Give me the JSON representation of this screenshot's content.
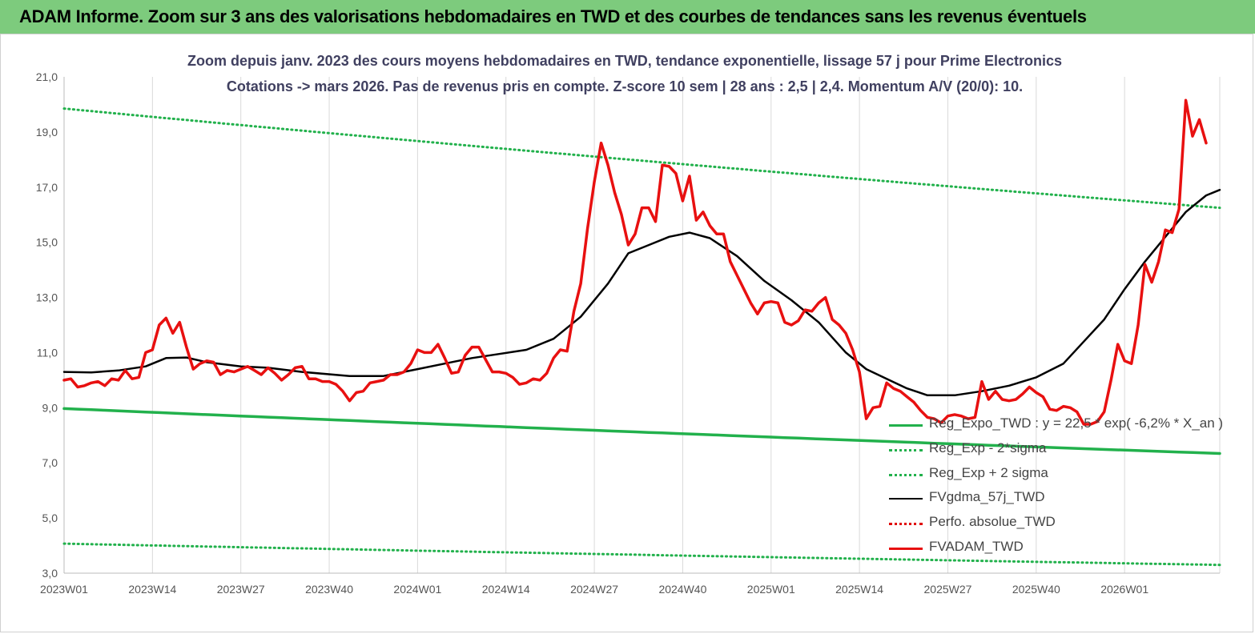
{
  "banner": {
    "title": "ADAM Informe. Zoom sur 3 ans des valorisations hebdomadaires en TWD et des courbes de tendances sans les revenus éventuels"
  },
  "colors": {
    "banner_bg": "#7dcb7d",
    "reg_expo": "#22b14c",
    "sigma": "#22b14c",
    "ma": "#000000",
    "perfo": "#e00000",
    "price": "#e81010",
    "grid": "#d9d9d9"
  },
  "chart_data": {
    "type": "line",
    "title": "Zoom depuis janv. 2023 des cours moyens hebdomadaires en TWD, tendance exponentielle, lissage 57 j pour Prime Electronics",
    "subtitle": "Cotations -> mars 2026. Pas de revenus pris en compte. Z-score 10 sem | 28 ans : 2,5 | 2,4. Momentum A/V (20/0): 10.",
    "xlabel": "",
    "ylabel": "",
    "ylim": [
      3,
      21
    ],
    "yticks": [
      "3,0",
      "5,0",
      "7,0",
      "9,0",
      "11,0",
      "13,0",
      "15,0",
      "17,0",
      "19,0",
      "21,0"
    ],
    "xticks": [
      "2023W01",
      "2023W14",
      "2023W27",
      "2023W40",
      "2024W01",
      "2024W14",
      "2024W27",
      "2024W40",
      "2025W01",
      "2025W14",
      "2025W27",
      "2025W40",
      "2026W01"
    ],
    "grid": "vertical",
    "legend_position": "bottom-right",
    "weeks_total": 170,
    "series": [
      {
        "name": "Reg_Expo_TWD : y = 22,5 * exp( -6,2% * X_an )",
        "style": "solid-thick",
        "color": "#22b14c",
        "values": [
          8.97,
          7.34
        ]
      },
      {
        "name": "Reg_Exp - 2*sigma",
        "style": "dotted",
        "color": "#22b14c",
        "values": [
          4.07,
          3.3
        ]
      },
      {
        "name": "Reg_Exp + 2 sigma",
        "style": "dotted",
        "color": "#22b14c",
        "values": [
          19.85,
          16.25
        ]
      },
      {
        "name": "FVgdma_57j_TWD",
        "style": "solid",
        "color": "#000000",
        "points": [
          [
            0,
            10.3
          ],
          [
            4,
            10.28
          ],
          [
            8,
            10.35
          ],
          [
            12,
            10.5
          ],
          [
            15,
            10.8
          ],
          [
            18,
            10.82
          ],
          [
            21,
            10.65
          ],
          [
            26,
            10.5
          ],
          [
            30,
            10.45
          ],
          [
            35,
            10.3
          ],
          [
            42,
            10.15
          ],
          [
            47,
            10.15
          ],
          [
            52,
            10.4
          ],
          [
            56,
            10.6
          ],
          [
            60,
            10.8
          ],
          [
            64,
            10.95
          ],
          [
            68,
            11.1
          ],
          [
            72,
            11.5
          ],
          [
            76,
            12.3
          ],
          [
            80,
            13.5
          ],
          [
            83,
            14.6
          ],
          [
            86,
            14.9
          ],
          [
            89,
            15.2
          ],
          [
            92,
            15.35
          ],
          [
            95,
            15.15
          ],
          [
            99,
            14.5
          ],
          [
            103,
            13.6
          ],
          [
            107,
            12.9
          ],
          [
            111,
            12.1
          ],
          [
            115,
            11.0
          ],
          [
            118,
            10.4
          ],
          [
            121,
            10.05
          ],
          [
            124,
            9.7
          ],
          [
            127,
            9.45
          ],
          [
            131,
            9.45
          ],
          [
            135,
            9.6
          ],
          [
            139,
            9.8
          ],
          [
            143,
            10.1
          ],
          [
            147,
            10.6
          ],
          [
            150,
            11.4
          ],
          [
            153,
            12.2
          ],
          [
            156,
            13.3
          ],
          [
            159,
            14.3
          ],
          [
            162,
            15.2
          ],
          [
            165,
            16.1
          ],
          [
            168,
            16.7
          ],
          [
            170,
            16.9
          ]
        ]
      },
      {
        "name": "Perfo. absolue_TWD",
        "style": "dotted",
        "color": "#e00000",
        "values": []
      },
      {
        "name": "FVADAM_TWD",
        "style": "solid-thick",
        "color": "#e81010",
        "points": [
          [
            0,
            10.0
          ],
          [
            1,
            10.05
          ],
          [
            2,
            9.75
          ],
          [
            3,
            9.8
          ],
          [
            4,
            9.9
          ],
          [
            5,
            9.95
          ],
          [
            6,
            9.8
          ],
          [
            7,
            10.05
          ],
          [
            8,
            10.0
          ],
          [
            9,
            10.35
          ],
          [
            10,
            10.05
          ],
          [
            11,
            10.1
          ],
          [
            12,
            11.0
          ],
          [
            13,
            11.1
          ],
          [
            14,
            12.0
          ],
          [
            15,
            12.25
          ],
          [
            16,
            11.7
          ],
          [
            17,
            12.1
          ],
          [
            18,
            11.2
          ],
          [
            19,
            10.4
          ],
          [
            20,
            10.6
          ],
          [
            21,
            10.7
          ],
          [
            22,
            10.65
          ],
          [
            23,
            10.2
          ],
          [
            24,
            10.35
          ],
          [
            25,
            10.3
          ],
          [
            26,
            10.4
          ],
          [
            27,
            10.5
          ],
          [
            28,
            10.35
          ],
          [
            29,
            10.2
          ],
          [
            30,
            10.45
          ],
          [
            31,
            10.25
          ],
          [
            32,
            10.0
          ],
          [
            33,
            10.2
          ],
          [
            34,
            10.45
          ],
          [
            35,
            10.5
          ],
          [
            36,
            10.05
          ],
          [
            37,
            10.05
          ],
          [
            38,
            9.95
          ],
          [
            39,
            9.95
          ],
          [
            40,
            9.85
          ],
          [
            41,
            9.6
          ],
          [
            42,
            9.25
          ],
          [
            43,
            9.55
          ],
          [
            44,
            9.6
          ],
          [
            45,
            9.9
          ],
          [
            46,
            9.95
          ],
          [
            47,
            10.0
          ],
          [
            48,
            10.2
          ],
          [
            49,
            10.2
          ],
          [
            50,
            10.3
          ],
          [
            51,
            10.6
          ],
          [
            52,
            11.1
          ],
          [
            53,
            11.0
          ],
          [
            54,
            11.0
          ],
          [
            55,
            11.3
          ],
          [
            56,
            10.8
          ],
          [
            57,
            10.25
          ],
          [
            58,
            10.3
          ],
          [
            59,
            10.9
          ],
          [
            60,
            11.2
          ],
          [
            61,
            11.2
          ],
          [
            62,
            10.75
          ],
          [
            63,
            10.3
          ],
          [
            64,
            10.3
          ],
          [
            65,
            10.25
          ],
          [
            66,
            10.1
          ],
          [
            67,
            9.85
          ],
          [
            68,
            9.9
          ],
          [
            69,
            10.05
          ],
          [
            70,
            10.0
          ],
          [
            71,
            10.25
          ],
          [
            72,
            10.8
          ],
          [
            73,
            11.1
          ],
          [
            74,
            11.05
          ],
          [
            75,
            12.5
          ],
          [
            76,
            13.5
          ],
          [
            77,
            15.5
          ],
          [
            78,
            17.2
          ],
          [
            79,
            18.6
          ],
          [
            80,
            17.8
          ],
          [
            81,
            16.8
          ],
          [
            82,
            16.0
          ],
          [
            83,
            14.9
          ],
          [
            84,
            15.3
          ],
          [
            85,
            16.25
          ],
          [
            86,
            16.25
          ],
          [
            87,
            15.75
          ],
          [
            88,
            17.8
          ],
          [
            89,
            17.75
          ],
          [
            90,
            17.5
          ],
          [
            91,
            16.5
          ],
          [
            92,
            17.4
          ],
          [
            93,
            15.8
          ],
          [
            94,
            16.1
          ],
          [
            95,
            15.6
          ],
          [
            96,
            15.3
          ],
          [
            97,
            15.3
          ],
          [
            98,
            14.3
          ],
          [
            99,
            13.8
          ],
          [
            100,
            13.3
          ],
          [
            101,
            12.8
          ],
          [
            102,
            12.4
          ],
          [
            103,
            12.8
          ],
          [
            104,
            12.85
          ],
          [
            105,
            12.8
          ],
          [
            106,
            12.1
          ],
          [
            107,
            12.0
          ],
          [
            108,
            12.15
          ],
          [
            109,
            12.55
          ],
          [
            110,
            12.5
          ],
          [
            111,
            12.8
          ],
          [
            112,
            13.0
          ],
          [
            113,
            12.2
          ],
          [
            114,
            12.0
          ],
          [
            115,
            11.7
          ],
          [
            116,
            11.1
          ],
          [
            117,
            10.3
          ],
          [
            118,
            8.6
          ],
          [
            119,
            9.0
          ],
          [
            120,
            9.05
          ],
          [
            121,
            9.9
          ],
          [
            122,
            9.7
          ],
          [
            123,
            9.6
          ],
          [
            124,
            9.4
          ],
          [
            125,
            9.2
          ],
          [
            126,
            8.9
          ],
          [
            127,
            8.65
          ],
          [
            128,
            8.6
          ],
          [
            129,
            8.45
          ],
          [
            130,
            8.7
          ],
          [
            131,
            8.75
          ],
          [
            132,
            8.7
          ],
          [
            133,
            8.6
          ],
          [
            134,
            8.65
          ],
          [
            135,
            9.95
          ],
          [
            136,
            9.3
          ],
          [
            137,
            9.6
          ],
          [
            138,
            9.3
          ],
          [
            139,
            9.25
          ],
          [
            140,
            9.3
          ],
          [
            141,
            9.5
          ],
          [
            142,
            9.75
          ],
          [
            143,
            9.55
          ],
          [
            144,
            9.4
          ],
          [
            145,
            8.95
          ],
          [
            146,
            8.9
          ],
          [
            147,
            9.05
          ],
          [
            148,
            9.0
          ],
          [
            149,
            8.85
          ],
          [
            150,
            8.4
          ],
          [
            151,
            8.4
          ],
          [
            152,
            8.5
          ],
          [
            153,
            8.85
          ],
          [
            154,
            10.0
          ],
          [
            155,
            11.3
          ],
          [
            156,
            10.7
          ],
          [
            157,
            10.6
          ],
          [
            158,
            12.0
          ],
          [
            159,
            14.2
          ],
          [
            160,
            13.55
          ],
          [
            161,
            14.3
          ],
          [
            162,
            15.45
          ],
          [
            163,
            15.35
          ],
          [
            164,
            16.2
          ],
          [
            165,
            20.15
          ],
          [
            166,
            18.85
          ],
          [
            167,
            19.45
          ],
          [
            168,
            18.6
          ]
        ]
      }
    ]
  }
}
